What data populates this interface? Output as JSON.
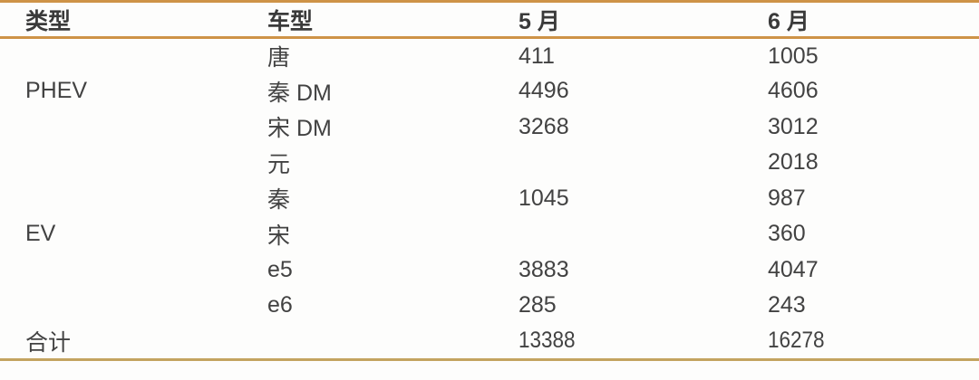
{
  "colors": {
    "accent_line": "#CE9347",
    "bottom_line": "#C3A35F",
    "text": "#424242",
    "header_text": "#3A3A3A",
    "bg": "#FDFDFC"
  },
  "chart_data": {
    "type": "table",
    "columns": [
      "类型",
      "车型",
      "5 月",
      "6 月"
    ],
    "rows": [
      {
        "type_label": "",
        "group": "PHEV",
        "model": "唐",
        "may": "411",
        "jun": "1005"
      },
      {
        "type_label": "PHEV",
        "group": "PHEV",
        "model": "秦 DM",
        "may": "4496",
        "jun": "4606"
      },
      {
        "type_label": "",
        "group": "PHEV",
        "model": "宋 DM",
        "may": "3268",
        "jun": "3012"
      },
      {
        "type_label": "",
        "group": "PHEV",
        "model": "元",
        "may": "",
        "jun": "2018"
      },
      {
        "type_label": "",
        "group": "EV",
        "model": "秦",
        "may": "1045",
        "jun": "987"
      },
      {
        "type_label": "EV",
        "group": "EV",
        "model": "宋",
        "may": "",
        "jun": "360"
      },
      {
        "type_label": "",
        "group": "EV",
        "model": "e5",
        "may": "3883",
        "jun": "4047"
      },
      {
        "type_label": "",
        "group": "EV",
        "model": "e6",
        "may": "285",
        "jun": "243"
      }
    ],
    "total": {
      "label": "合计",
      "model": "",
      "may": "13388",
      "jun": "16278"
    }
  }
}
